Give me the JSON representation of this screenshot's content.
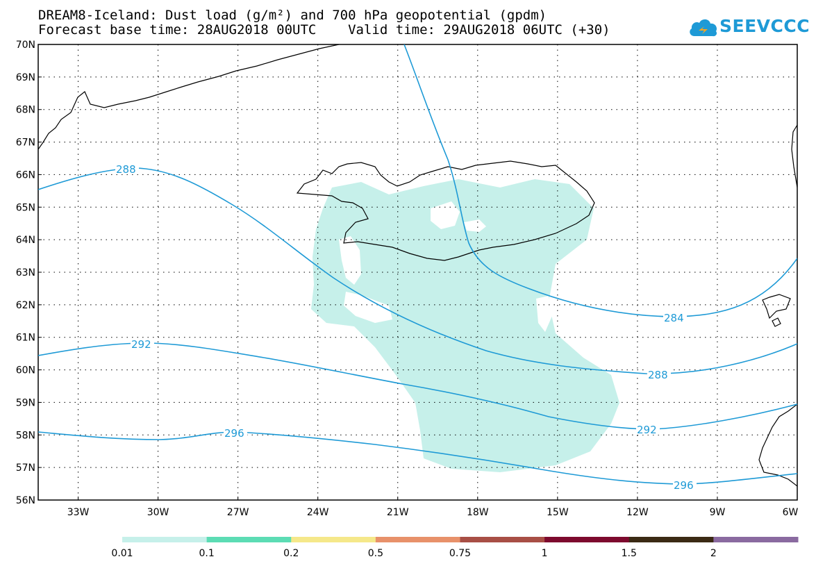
{
  "title": {
    "line1": "DREAM8-Iceland: Dust load (g/m²) and 700 hPa geopotential (gpdm)",
    "line2": "Forecast base time: 28AUG2018 00UTC    Valid time: 29AUG2018 06UTC (+30)"
  },
  "logo": {
    "text": "SEEVCCC",
    "icon": "cloud-icon",
    "color": "#1e9ad6"
  },
  "map": {
    "lat_range": [
      56,
      70
    ],
    "lon_range": [
      -34.5,
      -6
    ],
    "lat_labels": [
      "70N",
      "69N",
      "68N",
      "67N",
      "66N",
      "65N",
      "64N",
      "63N",
      "62N",
      "61N",
      "60N",
      "59N",
      "58N",
      "57N",
      "56N"
    ],
    "lon_labels": [
      "33W",
      "30W",
      "27W",
      "24W",
      "21W",
      "18W",
      "15W",
      "12W",
      "9W",
      "6W"
    ],
    "grid": true,
    "dust_color": "#c6f0ea",
    "contour_color": "#1e9ad6",
    "contour_labels": [
      "288",
      "292",
      "296",
      "284",
      "288",
      "292",
      "296"
    ]
  },
  "colorbar": {
    "thresholds": [
      "0.01",
      "0.1",
      "0.2",
      "0.5",
      "0.75",
      "1",
      "1.5",
      "2"
    ],
    "colors": [
      "#c6f0ea",
      "#5cdcb4",
      "#f5e88a",
      "#e8916a",
      "#a84f45",
      "#7d0a2e",
      "#3b2a14",
      "#8a6aa0"
    ]
  }
}
